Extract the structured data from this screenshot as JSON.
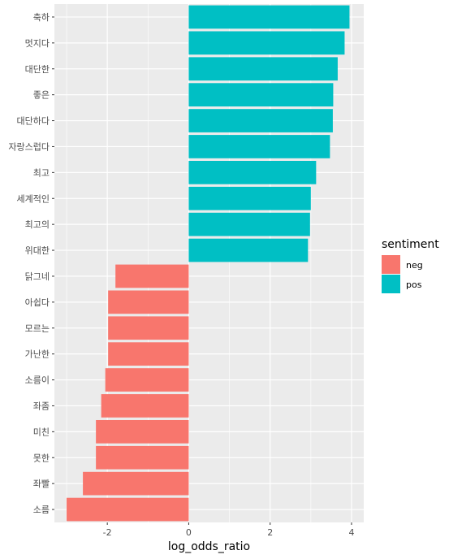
{
  "chart_data": {
    "type": "bar",
    "orientation": "horizontal",
    "xlabel": "log_odds_ratio",
    "ylabel": "",
    "xlim": [
      -3.3,
      4.3
    ],
    "x_ticks": [
      -2,
      0,
      2,
      4
    ],
    "x_tick_labels": [
      "-2",
      "0",
      "2",
      "4"
    ],
    "grid": true,
    "legend": {
      "title": "sentiment",
      "position": "right",
      "entries": [
        {
          "label": "neg",
          "color": "#F8766D"
        },
        {
          "label": "pos",
          "color": "#00BFC4"
        }
      ]
    },
    "categories": [
      "축하",
      "멋지다",
      "대단한",
      "좋은",
      "대단하다",
      "자랑스럽다",
      "최고",
      "세계적인",
      "최고의",
      "위대한",
      "닭그네",
      "아쉽다",
      "모르는",
      "가난한",
      "소름이",
      "좌좀",
      "미친",
      "못한",
      "좌빨",
      "소름"
    ],
    "values": [
      3.95,
      3.83,
      3.66,
      3.55,
      3.54,
      3.47,
      3.13,
      3.0,
      2.98,
      2.93,
      -1.8,
      -1.98,
      -1.98,
      -1.98,
      -2.05,
      -2.15,
      -2.28,
      -2.28,
      -2.6,
      -3.0
    ],
    "sentiment": [
      "pos",
      "pos",
      "pos",
      "pos",
      "pos",
      "pos",
      "pos",
      "pos",
      "pos",
      "pos",
      "neg",
      "neg",
      "neg",
      "neg",
      "neg",
      "neg",
      "neg",
      "neg",
      "neg",
      "neg"
    ]
  },
  "colors": {
    "panel": "#EBEBEB",
    "grid": "#FFFFFF",
    "neg": "#F8766D",
    "pos": "#00BFC4"
  }
}
